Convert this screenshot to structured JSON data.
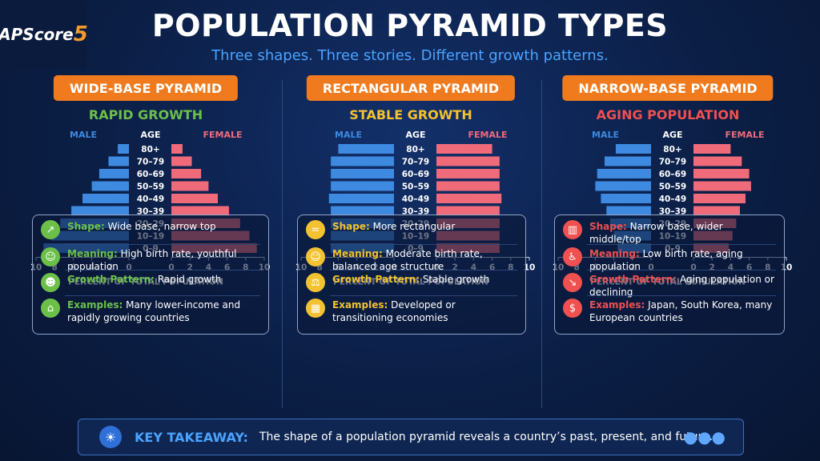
{
  "logo": {
    "text": "APScore",
    "num": "5"
  },
  "title": "POPULATION PYRAMID TYPES",
  "subtitle": "Three shapes. Three stories. Different growth patterns.",
  "labels": {
    "male": "MALE",
    "age": "AGE",
    "female": "FEMALE",
    "xlabel": "PERCENT OF TOTAL POPULATION"
  },
  "colors": {
    "male": "#3d8ae0",
    "female": "#ef6b7a",
    "orange": "#f07b1e",
    "green": "#6cc04a",
    "yellow": "#f2c230",
    "red": "#ef5050"
  },
  "chart_data": [
    {
      "type": "bar",
      "title": "WIDE-BASE PYRAMID",
      "subtitle": "RAPID GROWTH",
      "categories": [
        "80+",
        "70–79",
        "60–69",
        "50–59",
        "40–49",
        "30–39",
        "20–29",
        "10–19",
        "0–9"
      ],
      "series": [
        {
          "name": "MALE",
          "values": [
            1.2,
            2.2,
            3.2,
            4.0,
            5.0,
            6.2,
            7.4,
            8.4,
            9.2
          ]
        },
        {
          "name": "FEMALE",
          "values": [
            1.2,
            2.2,
            3.2,
            4.0,
            5.0,
            6.2,
            7.4,
            8.4,
            9.2
          ]
        }
      ],
      "xlabel": "PERCENT OF TOTAL POPULATION",
      "xticks": [
        "10",
        "8",
        "6",
        "4",
        "2",
        "0",
        "0",
        "2",
        "4",
        "6",
        "8",
        "10"
      ],
      "xlim": [
        0,
        10
      ]
    },
    {
      "type": "bar",
      "title": "RECTANGULAR PYRAMID",
      "subtitle": "STABLE GROWTH",
      "categories": [
        "80+",
        "70–79",
        "60–69",
        "50–59",
        "40–49",
        "30–39",
        "20–29",
        "10–19",
        "0–9"
      ],
      "series": [
        {
          "name": "MALE",
          "values": [
            6.0,
            6.8,
            6.8,
            6.8,
            7.0,
            6.8,
            6.8,
            6.8,
            6.8
          ]
        },
        {
          "name": "FEMALE",
          "values": [
            6.0,
            6.8,
            6.8,
            6.8,
            7.0,
            6.8,
            6.8,
            6.8,
            6.8
          ]
        }
      ],
      "xlabel": "PERCENT OF TOTAL POPULATION",
      "xticks": [
        "10",
        "8",
        "6",
        "4",
        "2",
        "0",
        "0",
        "2",
        "4",
        "6",
        "8",
        "10"
      ],
      "xlim": [
        0,
        10
      ]
    },
    {
      "type": "bar",
      "title": "NARROW-BASE PYRAMID",
      "subtitle": "AGING POPULATION",
      "categories": [
        "80+",
        "70–79",
        "60–69",
        "50–59",
        "40–49",
        "30–39",
        "20–29",
        "10–19",
        "0–9"
      ],
      "series": [
        {
          "name": "MALE",
          "values": [
            3.8,
            5.0,
            5.8,
            6.0,
            5.4,
            4.8,
            4.4,
            4.0,
            3.6
          ]
        },
        {
          "name": "FEMALE",
          "values": [
            4.0,
            5.2,
            6.0,
            6.2,
            5.6,
            5.0,
            4.6,
            4.2,
            3.8
          ]
        }
      ],
      "xlabel": "PERCENT OF TOTAL POPULATION",
      "xticks": [
        "10",
        "8",
        "6",
        "4",
        "2",
        "0",
        "0",
        "2",
        "4",
        "6",
        "8",
        "10"
      ],
      "xlim": [
        0,
        10
      ]
    }
  ],
  "panels": [
    {
      "banner": "WIDE-BASE PYRAMID",
      "growth": "RAPID GROWTH",
      "accent": "#6cc04a",
      "info": [
        {
          "icon": "chart-up-icon",
          "glyph": "↗",
          "label": "Shape:",
          "text": "Wide base, narrow top"
        },
        {
          "icon": "family-icon",
          "glyph": "☺",
          "label": "Meaning:",
          "text": "High birth rate, youthful population"
        },
        {
          "icon": "baby-icon",
          "glyph": "☻",
          "label": "Growth Pattern:",
          "text": "Rapid growth"
        },
        {
          "icon": "house-icon",
          "glyph": "⌂",
          "label": "Examples:",
          "text": "Many lower-income and rapidly growing countries"
        }
      ]
    },
    {
      "banner": "RECTANGULAR PYRAMID",
      "growth": "STABLE GROWTH",
      "accent": "#f2c230",
      "info": [
        {
          "icon": "equals-icon",
          "glyph": "=",
          "label": "Shape:",
          "text": "More rectangular"
        },
        {
          "icon": "family-icon",
          "glyph": "☺",
          "label": "Meaning:",
          "text": "Moderate birth rate, balanced age structure"
        },
        {
          "icon": "scales-icon",
          "glyph": "⚖",
          "label": "Growth Pattern:",
          "text": "Stable growth"
        },
        {
          "icon": "buildings-icon",
          "glyph": "▦",
          "label": "Examples:",
          "text": "Developed or transitioning economies"
        }
      ]
    },
    {
      "banner": "NARROW-BASE PYRAMID",
      "growth": "AGING POPULATION",
      "accent": "#ef5050",
      "info": [
        {
          "icon": "bar-chart-icon",
          "glyph": "▥",
          "label": "Shape:",
          "text": "Narrow base, wider middle/top"
        },
        {
          "icon": "elderly-icon",
          "glyph": "♿",
          "label": "Meaning:",
          "text": "Low birth rate, aging population"
        },
        {
          "icon": "trend-down-icon",
          "glyph": "↘",
          "label": "Growth Pattern:",
          "text": "Aging population or declining"
        },
        {
          "icon": "piggy-bank-icon",
          "glyph": "$",
          "label": "Examples:",
          "text": "Japan, South Korea, many European countries"
        }
      ]
    }
  ],
  "takeaway": {
    "label": "KEY TAKEAWAY:",
    "text": "The shape of a population pyramid reveals  a country’s past, present, and future."
  }
}
